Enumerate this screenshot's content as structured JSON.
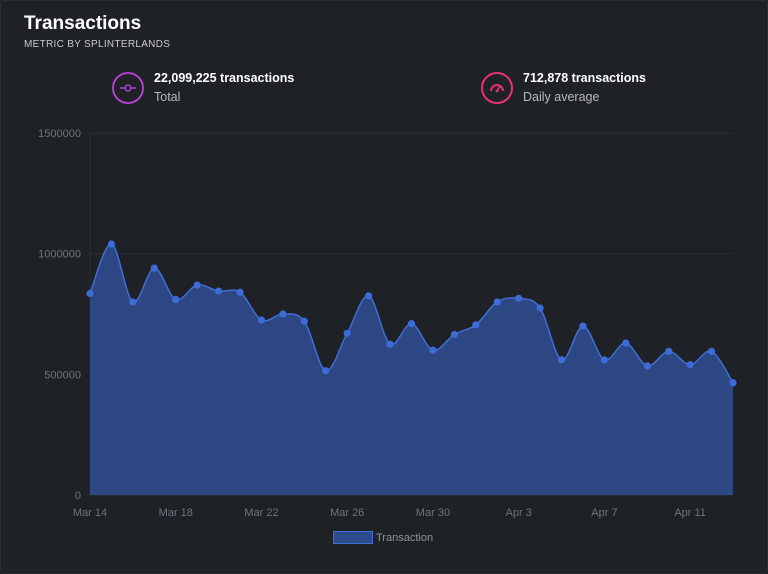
{
  "header": {
    "title": "Transactions",
    "subtitle": "METRIC BY SPLINTERLANDS"
  },
  "stats": {
    "total": {
      "value": "22,099,225 transactions",
      "label": "Total",
      "icon": "commit-icon",
      "color": "#b13ed2"
    },
    "daily": {
      "value": "712,878 transactions",
      "label": "Daily average",
      "icon": "gauge-icon",
      "color": "#e8336d"
    }
  },
  "chart_data": {
    "type": "area",
    "title": "",
    "xlabel": "",
    "ylabel": "",
    "ylim": [
      0,
      1500000
    ],
    "yticks": [
      "0",
      "500000",
      "1000000",
      "1500000"
    ],
    "xticks": [
      "Mar 14",
      "Mar 18",
      "Mar 22",
      "Mar 26",
      "Mar 30",
      "Apr 3",
      "Apr 7",
      "Apr 11"
    ],
    "x": [
      "Mar 14",
      "Mar 15",
      "Mar 16",
      "Mar 17",
      "Mar 18",
      "Mar 19",
      "Mar 20",
      "Mar 21",
      "Mar 22",
      "Mar 23",
      "Mar 24",
      "Mar 25",
      "Mar 26",
      "Mar 27",
      "Mar 28",
      "Mar 29",
      "Mar 30",
      "Mar 31",
      "Apr 1",
      "Apr 2",
      "Apr 3",
      "Apr 4",
      "Apr 5",
      "Apr 6",
      "Apr 7",
      "Apr 8",
      "Apr 9",
      "Apr 10",
      "Apr 11",
      "Apr 12",
      "Apr 13"
    ],
    "series": [
      {
        "name": "Transaction",
        "color": "#3f6fd6",
        "values": [
          835000,
          1040000,
          800000,
          940000,
          810000,
          870000,
          845000,
          840000,
          725000,
          750000,
          720000,
          515000,
          670000,
          825000,
          625000,
          710000,
          600000,
          665000,
          705000,
          800000,
          815000,
          775000,
          560000,
          700000,
          560000,
          630000,
          535000,
          595000,
          540000,
          595000,
          465000
        ]
      }
    ],
    "grid": true,
    "legend": "bottom"
  }
}
